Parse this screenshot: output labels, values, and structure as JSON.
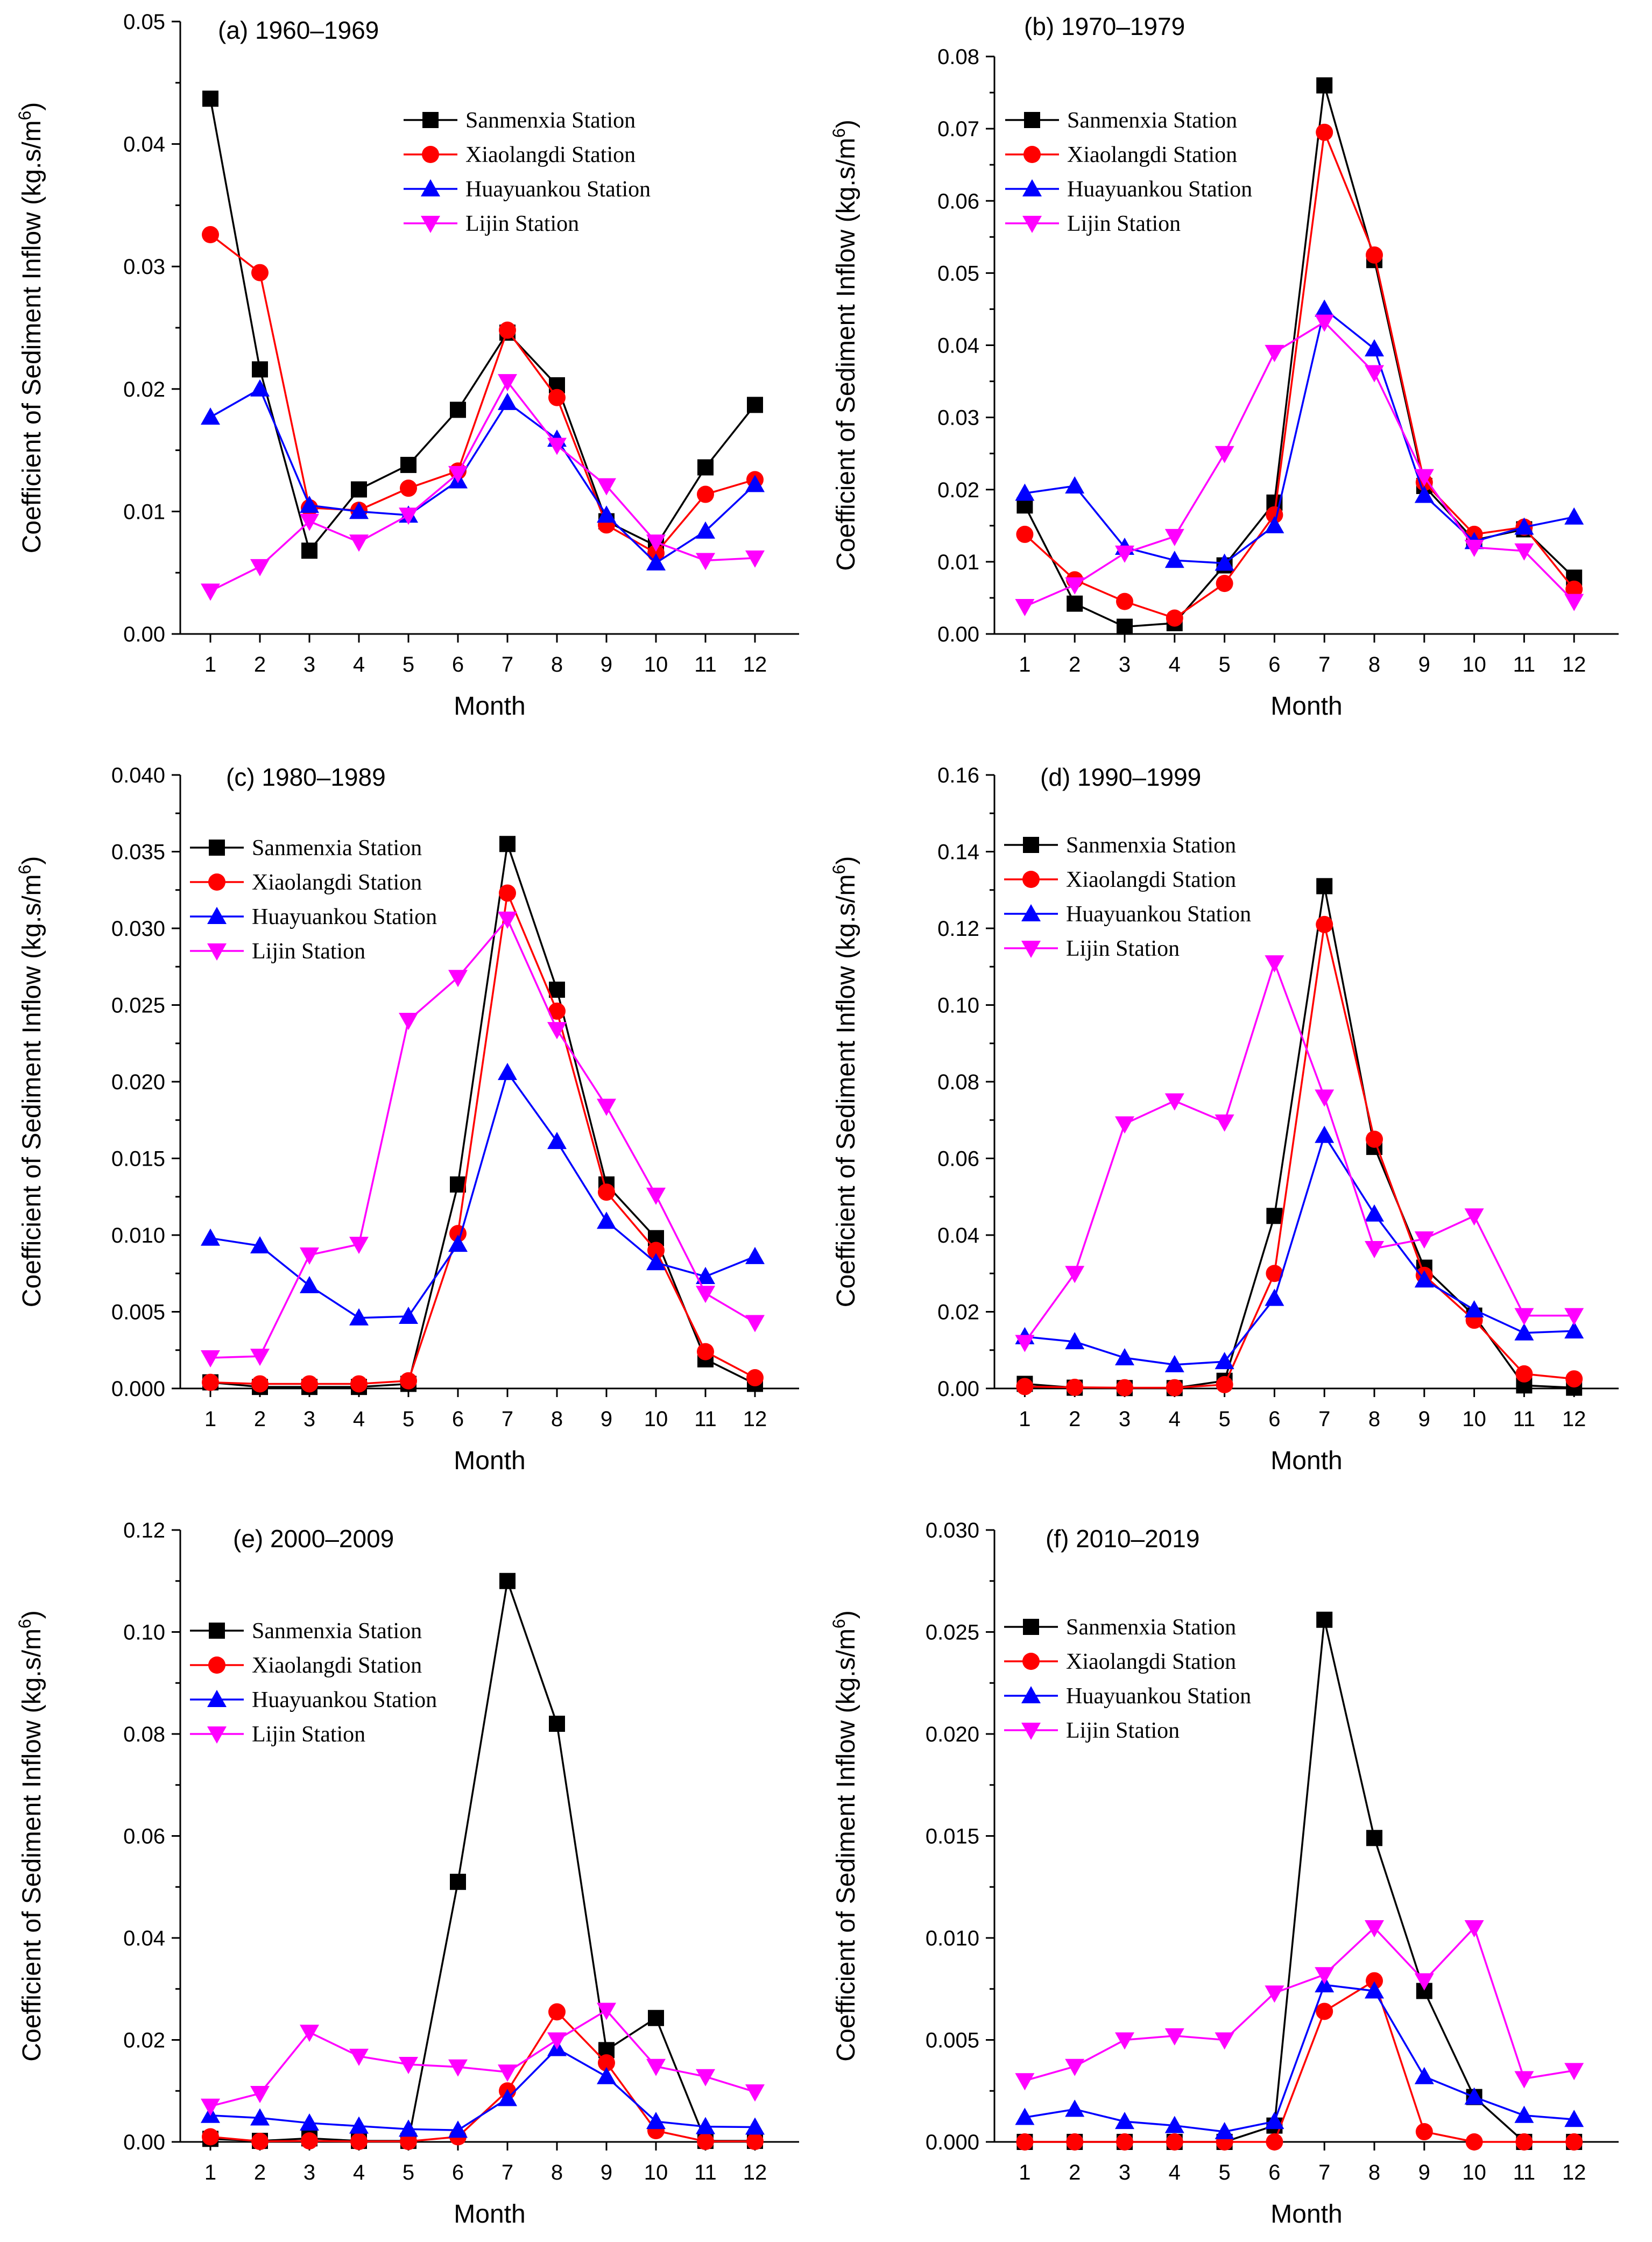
{
  "chart_data": [
    {
      "type": "line",
      "title": "(a) 1960–1969",
      "xlabel": "Month",
      "ylabel": "Coefficient of Sediment Inflow (kg.s/m",
      "ylabel_sup": "6",
      "ylabel_end": ")",
      "categories": [
        "1",
        "2",
        "3",
        "4",
        "5",
        "6",
        "7",
        "8",
        "9",
        "10",
        "11",
        "12"
      ],
      "ylim": [
        0,
        0.05
      ],
      "yticks": [
        "0.00",
        "0.01",
        "0.02",
        "0.03",
        "0.04",
        "0.05"
      ],
      "legend": "top-center",
      "series": [
        {
          "name": "Sanmenxia Station",
          "color": "#000000",
          "marker": "square",
          "values": [
            0.0437,
            0.0216,
            0.0068,
            0.0118,
            0.0138,
            0.0183,
            0.0246,
            0.0203,
            0.0092,
            0.0072,
            0.0136,
            0.0187
          ]
        },
        {
          "name": "Xiaolangdi Station",
          "color": "#ff0000",
          "marker": "circle",
          "values": [
            0.0326,
            0.0295,
            0.0103,
            0.0101,
            0.0119,
            0.0133,
            0.0248,
            0.0193,
            0.0089,
            0.0066,
            0.0114,
            0.0126
          ]
        },
        {
          "name": "Huayuankou Station",
          "color": "#0000ff",
          "marker": "triangle-up",
          "values": [
            0.0177,
            0.02,
            0.0105,
            0.01,
            0.0097,
            0.0125,
            0.0189,
            0.0159,
            0.0097,
            0.0058,
            0.0084,
            0.0122
          ]
        },
        {
          "name": "Lijin Station",
          "color": "#ff00ff",
          "marker": "triangle-down",
          "values": [
            0.0035,
            0.0055,
            0.0092,
            0.0075,
            0.0097,
            0.0131,
            0.0206,
            0.0154,
            0.0121,
            0.0075,
            0.006,
            0.0062
          ]
        }
      ]
    },
    {
      "type": "line",
      "title": "(b) 1970–1979",
      "xlabel": "Month",
      "ylabel": "Coefficient of Sediment Inflow (kg.s/m",
      "ylabel_sup": "6",
      "ylabel_end": ")",
      "categories": [
        "1",
        "2",
        "3",
        "4",
        "5",
        "6",
        "7",
        "8",
        "9",
        "10",
        "11",
        "12"
      ],
      "ylim": [
        0,
        0.08
      ],
      "yticks": [
        "0.00",
        "0.01",
        "0.02",
        "0.03",
        "0.04",
        "0.05",
        "0.06",
        "0.07",
        "0.08"
      ],
      "legend": "top-left",
      "series": [
        {
          "name": "Sanmenxia Station",
          "color": "#000000",
          "marker": "square",
          "values": [
            0.0178,
            0.0042,
            0.001,
            0.0015,
            0.0095,
            0.0182,
            0.076,
            0.0518,
            0.0205,
            0.013,
            0.0145,
            0.0078
          ]
        },
        {
          "name": "Xiaolangdi Station",
          "color": "#ff0000",
          "marker": "circle",
          "values": [
            0.0138,
            0.0075,
            0.0045,
            0.0022,
            0.007,
            0.0165,
            0.0695,
            0.0525,
            0.021,
            0.0138,
            0.0148,
            0.0062
          ]
        },
        {
          "name": "Huayuankou Station",
          "color": "#0000ff",
          "marker": "triangle-up",
          "values": [
            0.0195,
            0.0205,
            0.012,
            0.0102,
            0.0098,
            0.015,
            0.045,
            0.0395,
            0.0192,
            0.0128,
            0.0148,
            0.0162
          ]
        },
        {
          "name": "Lijin Station",
          "color": "#ff00ff",
          "marker": "triangle-down",
          "values": [
            0.0038,
            0.0068,
            0.0112,
            0.0135,
            0.025,
            0.039,
            0.0432,
            0.0362,
            0.0218,
            0.012,
            0.0115,
            0.0045
          ]
        }
      ]
    },
    {
      "type": "line",
      "title": "(c) 1980–1989",
      "xlabel": "Month",
      "ylabel": "Coefficient of Sediment Inflow (kg.s/m",
      "ylabel_sup": "6",
      "ylabel_end": ")",
      "categories": [
        "1",
        "2",
        "3",
        "4",
        "5",
        "6",
        "7",
        "8",
        "9",
        "10",
        "11",
        "12"
      ],
      "ylim": [
        0,
        0.04
      ],
      "yticks": [
        "0.000",
        "0.005",
        "0.010",
        "0.015",
        "0.020",
        "0.025",
        "0.030",
        "0.035",
        "0.040"
      ],
      "legend": "top-left",
      "series": [
        {
          "name": "Sanmenxia Station",
          "color": "#000000",
          "marker": "square",
          "values": [
            0.0004,
            0.0001,
            0.0001,
            0.0001,
            0.0003,
            0.0133,
            0.0355,
            0.026,
            0.0133,
            0.0098,
            0.0019,
            0.0003
          ]
        },
        {
          "name": "Xiaolangdi Station",
          "color": "#ff0000",
          "marker": "circle",
          "values": [
            0.0004,
            0.0003,
            0.0003,
            0.0003,
            0.0005,
            0.0101,
            0.0323,
            0.0246,
            0.0128,
            0.009,
            0.0024,
            0.0007
          ]
        },
        {
          "name": "Huayuankou Station",
          "color": "#0000ff",
          "marker": "triangle-up",
          "values": [
            0.0098,
            0.0093,
            0.0067,
            0.0046,
            0.0047,
            0.0094,
            0.0206,
            0.0161,
            0.0109,
            0.0082,
            0.0073,
            0.0086
          ]
        },
        {
          "name": "Lijin Station",
          "color": "#ff00ff",
          "marker": "triangle-down",
          "values": [
            0.002,
            0.0021,
            0.0087,
            0.0094,
            0.024,
            0.0268,
            0.0306,
            0.0234,
            0.0184,
            0.0126,
            0.0062,
            0.0043
          ]
        }
      ]
    },
    {
      "type": "line",
      "title": "(d) 1990–1999",
      "xlabel": "Month",
      "ylabel": "Coefficient of Sediment Inflow (kg.s/m",
      "ylabel_sup": "6",
      "ylabel_end": ")",
      "categories": [
        "1",
        "2",
        "3",
        "4",
        "5",
        "6",
        "7",
        "8",
        "9",
        "10",
        "11",
        "12"
      ],
      "ylim": [
        0,
        0.16
      ],
      "yticks": [
        "0.00",
        "0.02",
        "0.04",
        "0.06",
        "0.08",
        "0.10",
        "0.12",
        "0.14",
        "0.16"
      ],
      "legend": "top-left",
      "series": [
        {
          "name": "Sanmenxia Station",
          "color": "#000000",
          "marker": "square",
          "values": [
            0.0012,
            0.0002,
            0.0001,
            0.0001,
            0.002,
            0.045,
            0.131,
            0.063,
            0.0315,
            0.019,
            0.0008,
            0.0002
          ]
        },
        {
          "name": "Xiaolangdi Station",
          "color": "#ff0000",
          "marker": "circle",
          "values": [
            0.0005,
            0.0003,
            0.0002,
            0.0002,
            0.001,
            0.03,
            0.121,
            0.065,
            0.0295,
            0.0178,
            0.0038,
            0.0025
          ]
        },
        {
          "name": "Huayuankou Station",
          "color": "#0000ff",
          "marker": "triangle-up",
          "values": [
            0.0135,
            0.0122,
            0.008,
            0.0062,
            0.007,
            0.0235,
            0.066,
            0.0455,
            0.0283,
            0.0205,
            0.0145,
            0.015
          ]
        },
        {
          "name": "Lijin Station",
          "color": "#ff00ff",
          "marker": "triangle-down",
          "values": [
            0.012,
            0.03,
            0.069,
            0.075,
            0.0695,
            0.111,
            0.076,
            0.0365,
            0.039,
            0.045,
            0.019,
            0.019
          ]
        }
      ]
    },
    {
      "type": "line",
      "title": "(e) 2000–2009",
      "xlabel": "Month",
      "ylabel": "Coefficient of Sediment Inflow (kg.s/m",
      "ylabel_sup": "6",
      "ylabel_end": ")",
      "categories": [
        "1",
        "2",
        "3",
        "4",
        "5",
        "6",
        "7",
        "8",
        "9",
        "10",
        "11",
        "12"
      ],
      "ylim": [
        0,
        0.12
      ],
      "yticks": [
        "0.00",
        "0.02",
        "0.04",
        "0.06",
        "0.08",
        "0.10",
        "0.12"
      ],
      "legend": "top-left",
      "series": [
        {
          "name": "Sanmenxia Station",
          "color": "#000000",
          "marker": "square",
          "values": [
            0.0006,
            0.0002,
            0.0007,
            0.0002,
            0.0002,
            0.051,
            0.11,
            0.082,
            0.018,
            0.0243,
            0.0002,
            0.0002
          ]
        },
        {
          "name": "Xiaolangdi Station",
          "color": "#ff0000",
          "marker": "circle",
          "values": [
            0.001,
            0.0001,
            0.0002,
            0.0001,
            0.0001,
            0.001,
            0.01,
            0.0255,
            0.0155,
            0.0022,
            0.0001,
            0.0001
          ]
        },
        {
          "name": "Huayuankou Station",
          "color": "#0000ff",
          "marker": "triangle-up",
          "values": [
            0.0052,
            0.0047,
            0.0037,
            0.0031,
            0.0025,
            0.0023,
            0.0085,
            0.0183,
            0.0128,
            0.004,
            0.003,
            0.0029
          ]
        },
        {
          "name": "Lijin Station",
          "color": "#ff00ff",
          "marker": "triangle-down",
          "values": [
            0.007,
            0.0095,
            0.0215,
            0.0168,
            0.0152,
            0.0147,
            0.0137,
            0.02,
            0.0258,
            0.0148,
            0.0128,
            0.0098
          ]
        }
      ]
    },
    {
      "type": "line",
      "title": "(f) 2010–2019",
      "xlabel": "Month",
      "ylabel": "Coefficient of Sediment Inflow (kg.s/m",
      "ylabel_sup": "6",
      "ylabel_end": ")",
      "categories": [
        "1",
        "2",
        "3",
        "4",
        "5",
        "6",
        "7",
        "8",
        "9",
        "10",
        "11",
        "12"
      ],
      "ylim": [
        0,
        0.03
      ],
      "yticks": [
        "0.000",
        "0.005",
        "0.010",
        "0.015",
        "0.020",
        "0.025",
        "0.030"
      ],
      "legend": "top-left",
      "series": [
        {
          "name": "Sanmenxia Station",
          "color": "#000000",
          "marker": "square",
          "values": [
            0.0,
            0.0,
            0.0,
            0.0,
            0.0,
            0.0008,
            0.0256,
            0.0149,
            0.0074,
            0.0022,
            0.0,
            0.0
          ]
        },
        {
          "name": "Xiaolangdi Station",
          "color": "#ff0000",
          "marker": "circle",
          "values": [
            0.0,
            0.0,
            0.0,
            0.0,
            0.0,
            0.0,
            0.0064,
            0.0079,
            0.0005,
            0.0,
            0.0,
            0.0
          ]
        },
        {
          "name": "Huayuankou Station",
          "color": "#0000ff",
          "marker": "triangle-up",
          "values": [
            0.0012,
            0.0016,
            0.001,
            0.0008,
            0.0005,
            0.001,
            0.0077,
            0.0074,
            0.0032,
            0.0022,
            0.0013,
            0.0011
          ]
        },
        {
          "name": "Lijin Station",
          "color": "#ff00ff",
          "marker": "triangle-down",
          "values": [
            0.003,
            0.0037,
            0.005,
            0.0052,
            0.005,
            0.0073,
            0.0082,
            0.0105,
            0.0079,
            0.0105,
            0.0031,
            0.0035
          ]
        }
      ]
    }
  ]
}
